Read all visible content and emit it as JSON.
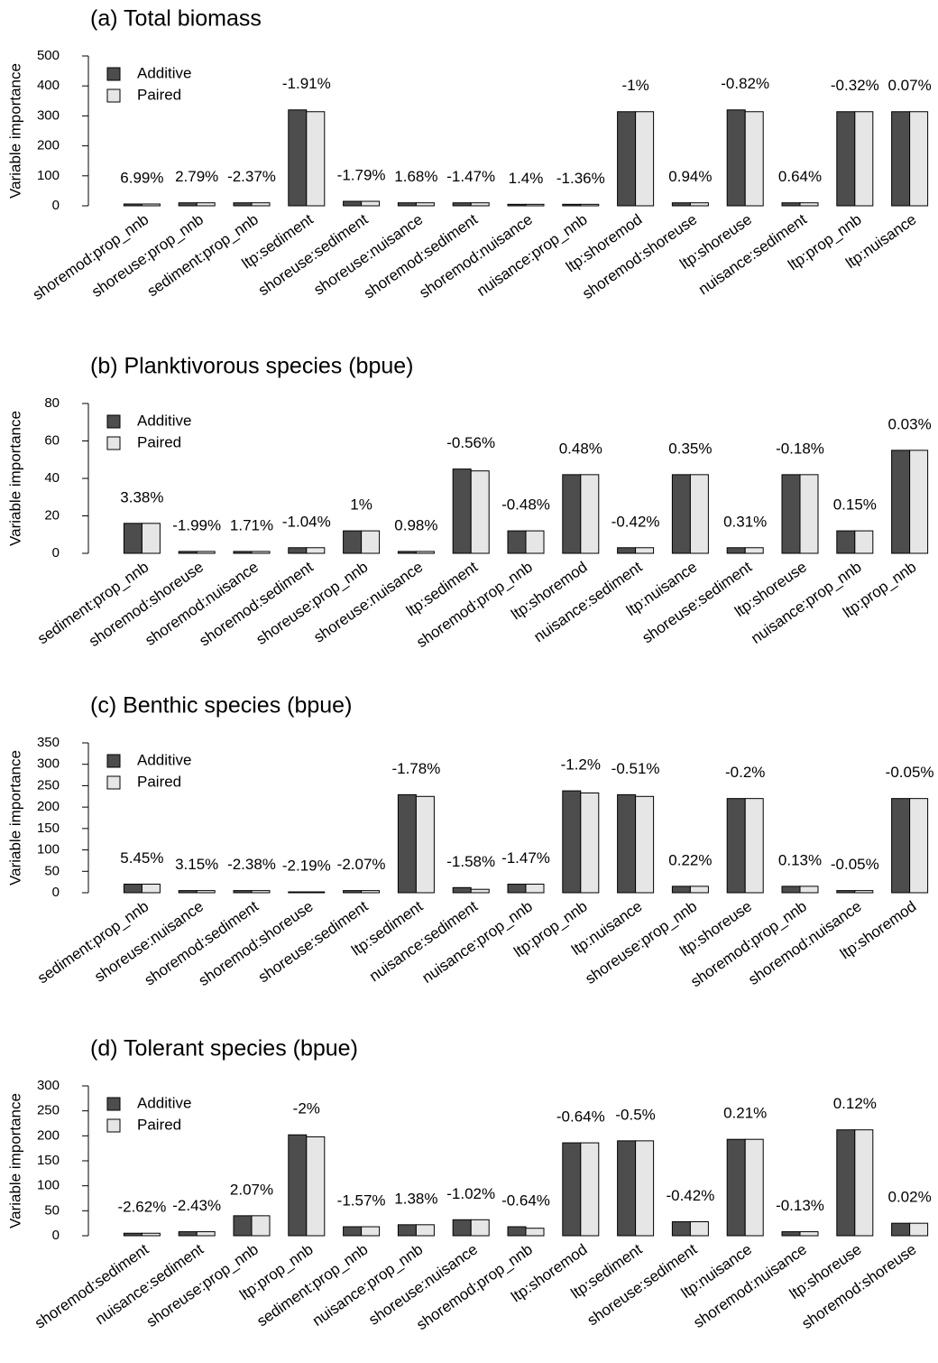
{
  "chart_data": [
    {
      "type": "bar",
      "title": "(a) Total biomass",
      "ylabel": "Variable importance",
      "legend": "top-left",
      "categories": [
        "shoremod:prop_nnb",
        "shoreuse:prop_nnb",
        "sediment:prop_nnb",
        "ltp:sediment",
        "shoreuse:sediment",
        "shoreuse:nuisance",
        "shoremod:sediment",
        "shoremod:nuisance",
        "nuisance:prop_nnb",
        "ltp:shoremod",
        "shoremod:shoreuse",
        "ltp:shoreuse",
        "nuisance:sediment",
        "ltp:prop_nnb",
        "ltp:nuisance"
      ],
      "annotations": [
        "6.99%",
        "2.79%",
        "-2.37%",
        "-1.91%",
        "-1.79%",
        "1.68%",
        "-1.47%",
        "1.4%",
        "-1.36%",
        "-1%",
        "0.94%",
        "-0.82%",
        "0.64%",
        "-0.32%",
        "0.07%"
      ],
      "series": [
        {
          "name": "Additive",
          "color": "#4d4d4d",
          "values": [
            6,
            10,
            10,
            320,
            15,
            10,
            10,
            5,
            5,
            314,
            10,
            320,
            10,
            314,
            314
          ]
        },
        {
          "name": "Paired",
          "color": "#e6e6e6",
          "values": [
            6,
            10,
            10,
            314,
            15,
            10,
            10,
            5,
            5,
            314,
            10,
            314,
            10,
            314,
            314
          ]
        }
      ],
      "ylim": [
        0,
        500
      ],
      "yticks": [
        0,
        100,
        200,
        300,
        400,
        500
      ]
    },
    {
      "type": "bar",
      "title": "(b) Planktivorous species (bpue)",
      "ylabel": "Variable importance",
      "legend": "top-left",
      "categories": [
        "sediment:prop_nnb",
        "shoremod:shoreuse",
        "shoremod:nuisance",
        "shoremod:sediment",
        "shoreuse:prop_nnb",
        "shoreuse:nuisance",
        "ltp:sediment",
        "shoremod:prop_nnb",
        "ltp:shoremod",
        "nuisance:sediment",
        "ltp:nuisance",
        "shoreuse:sediment",
        "ltp:shoreuse",
        "nuisance:prop_nnb",
        "ltp:prop_nnb"
      ],
      "annotations": [
        "3.38%",
        "-1.99%",
        "1.71%",
        "-1.04%",
        "1%",
        "0.98%",
        "-0.56%",
        "-0.48%",
        "0.48%",
        "-0.42%",
        "0.35%",
        "0.31%",
        "-0.18%",
        "0.15%",
        "0.03%"
      ],
      "series": [
        {
          "name": "Additive",
          "color": "#4d4d4d",
          "values": [
            16,
            1,
            1,
            3,
            12,
            1,
            45,
            12,
            42,
            3,
            42,
            3,
            42,
            12,
            55
          ]
        },
        {
          "name": "Paired",
          "color": "#e6e6e6",
          "values": [
            16,
            1,
            1,
            3,
            12,
            1,
            44,
            12,
            42,
            3,
            42,
            3,
            42,
            12,
            55
          ]
        }
      ],
      "ylim": [
        0,
        80
      ],
      "yticks": [
        0,
        20,
        40,
        60,
        80
      ]
    },
    {
      "type": "bar",
      "title": "(c) Benthic species (bpue)",
      "ylabel": "Variable importance",
      "legend": "top-left",
      "categories": [
        "sediment:prop_nnb",
        "shoreuse:nuisance",
        "shoremod:sediment",
        "shoremod:shoreuse",
        "shoreuse:sediment",
        "ltp:sediment",
        "nuisance:sediment",
        "nuisance:prop_nnb",
        "ltp:prop_nnb",
        "ltp:nuisance",
        "shoreuse:prop_nnb",
        "ltp:shoreuse",
        "shoremod:prop_nnb",
        "shoremod:nuisance",
        "ltp:shoremod"
      ],
      "annotations": [
        "5.45%",
        "3.15%",
        "-2.38%",
        "-2.19%",
        "-2.07%",
        "-1.78%",
        "-1.58%",
        "-1.47%",
        "-1.2%",
        "-0.51%",
        "0.22%",
        "-0.2%",
        "0.13%",
        "-0.05%",
        "-0.05%"
      ],
      "series": [
        {
          "name": "Additive",
          "color": "#4d4d4d",
          "values": [
            20,
            5,
            5,
            2,
            5,
            229,
            12,
            20,
            238,
            229,
            15,
            220,
            15,
            5,
            220
          ]
        },
        {
          "name": "Paired",
          "color": "#e6e6e6",
          "values": [
            20,
            5,
            5,
            2,
            5,
            225,
            8,
            20,
            233,
            225,
            15,
            220,
            15,
            5,
            220
          ]
        }
      ],
      "ylim": [
        0,
        350
      ],
      "yticks": [
        0,
        50,
        100,
        150,
        200,
        250,
        300,
        350
      ]
    },
    {
      "type": "bar",
      "title": "(d) Tolerant species (bpue)",
      "ylabel": "Variable importance",
      "legend": "top-left",
      "categories": [
        "shoremod:sediment",
        "nuisance:sediment",
        "shoreuse:prop_nnb",
        "ltp:prop_nnb",
        "sediment:prop_nnb",
        "nuisance:prop_nnb",
        "shoreuse:nuisance",
        "shoremod:prop_nnb",
        "ltp:shoremod",
        "ltp:sediment",
        "shoreuse:sediment",
        "ltp:nuisance",
        "shoremod:nuisance",
        "ltp:shoreuse",
        "shoremod:shoreuse"
      ],
      "annotations": [
        "-2.62%",
        "-2.43%",
        "2.07%",
        "-2%",
        "-1.57%",
        "1.38%",
        "-1.02%",
        "-0.64%",
        "-0.64%",
        "-0.5%",
        "-0.42%",
        "0.21%",
        "-0.13%",
        "0.12%",
        "0.02%"
      ],
      "series": [
        {
          "name": "Additive",
          "color": "#4d4d4d",
          "values": [
            5,
            8,
            40,
            202,
            18,
            22,
            32,
            18,
            186,
            190,
            28,
            193,
            8,
            212,
            25
          ]
        },
        {
          "name": "Paired",
          "color": "#e6e6e6",
          "values": [
            5,
            8,
            40,
            198,
            18,
            22,
            32,
            15,
            186,
            190,
            28,
            193,
            8,
            212,
            25
          ]
        }
      ],
      "ylim": [
        0,
        300
      ],
      "yticks": [
        0,
        50,
        100,
        150,
        200,
        250,
        300
      ]
    }
  ]
}
